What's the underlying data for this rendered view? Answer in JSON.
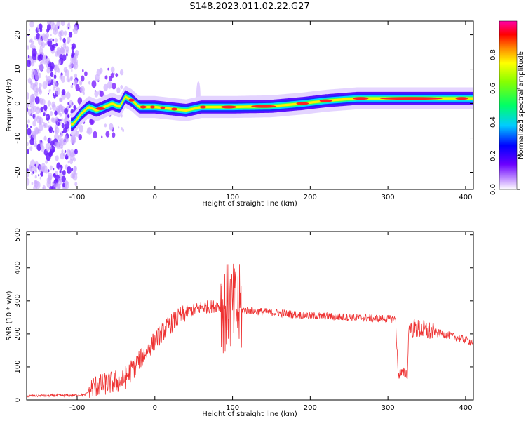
{
  "figure_title": "S148.2023.011.02.22.G27",
  "chart_data": [
    {
      "type": "heatmap",
      "title": "",
      "xlabel": "Height of straight line (km)",
      "ylabel": "Frequency (Hz)",
      "xlim": [
        -165,
        410
      ],
      "ylim": [
        -25,
        24
      ],
      "x_ticks": [
        -100,
        0,
        100,
        200,
        300,
        400
      ],
      "y_ticks": [
        -20,
        -10,
        0,
        10,
        20
      ],
      "ridge": [
        {
          "x": -105,
          "y": -6
        },
        {
          "x": -95,
          "y": -3
        },
        {
          "x": -85,
          "y": -1
        },
        {
          "x": -75,
          "y": -2
        },
        {
          "x": -65,
          "y": -1
        },
        {
          "x": -55,
          "y": 0
        },
        {
          "x": -45,
          "y": -1
        },
        {
          "x": -38,
          "y": 2
        },
        {
          "x": -30,
          "y": 1
        },
        {
          "x": -20,
          "y": -1
        },
        {
          "x": 0,
          "y": -1
        },
        {
          "x": 20,
          "y": -1.5
        },
        {
          "x": 40,
          "y": -2
        },
        {
          "x": 60,
          "y": -1
        },
        {
          "x": 100,
          "y": -1
        },
        {
          "x": 150,
          "y": -0.8
        },
        {
          "x": 190,
          "y": 0
        },
        {
          "x": 220,
          "y": 0.8
        },
        {
          "x": 260,
          "y": 1.5
        },
        {
          "x": 320,
          "y": 1.5
        },
        {
          "x": 410,
          "y": 1.5
        }
      ],
      "colorbar": {
        "label": "Normalized spectral amplitude",
        "range": [
          0,
          1
        ],
        "ticks": [
          "0.0",
          "0.2",
          "0.4",
          "0.6",
          "0.8"
        ]
      }
    },
    {
      "type": "line",
      "title": "",
      "xlabel": "Height of straight line (km)",
      "ylabel": "SNR (10 * v/v)",
      "xlim": [
        -165,
        410
      ],
      "ylim": [
        0,
        510
      ],
      "x_ticks": [
        -100,
        0,
        100,
        200,
        300,
        400
      ],
      "y_ticks": [
        0,
        100,
        200,
        300,
        400,
        500
      ],
      "color": "#ee3333",
      "trend": [
        {
          "x": -165,
          "y": 12
        },
        {
          "x": -90,
          "y": 15
        },
        {
          "x": -80,
          "y": 40
        },
        {
          "x": -60,
          "y": 50
        },
        {
          "x": -40,
          "y": 60
        },
        {
          "x": -20,
          "y": 120
        },
        {
          "x": 0,
          "y": 180
        },
        {
          "x": 20,
          "y": 230
        },
        {
          "x": 40,
          "y": 265
        },
        {
          "x": 60,
          "y": 280
        },
        {
          "x": 80,
          "y": 285
        },
        {
          "x": 100,
          "y": 275
        },
        {
          "x": 150,
          "y": 265
        },
        {
          "x": 200,
          "y": 255
        },
        {
          "x": 250,
          "y": 250
        },
        {
          "x": 310,
          "y": 245
        },
        {
          "x": 313,
          "y": 80
        },
        {
          "x": 325,
          "y": 80
        },
        {
          "x": 327,
          "y": 220
        },
        {
          "x": 350,
          "y": 210
        },
        {
          "x": 380,
          "y": 195
        },
        {
          "x": 410,
          "y": 175
        }
      ]
    }
  ]
}
